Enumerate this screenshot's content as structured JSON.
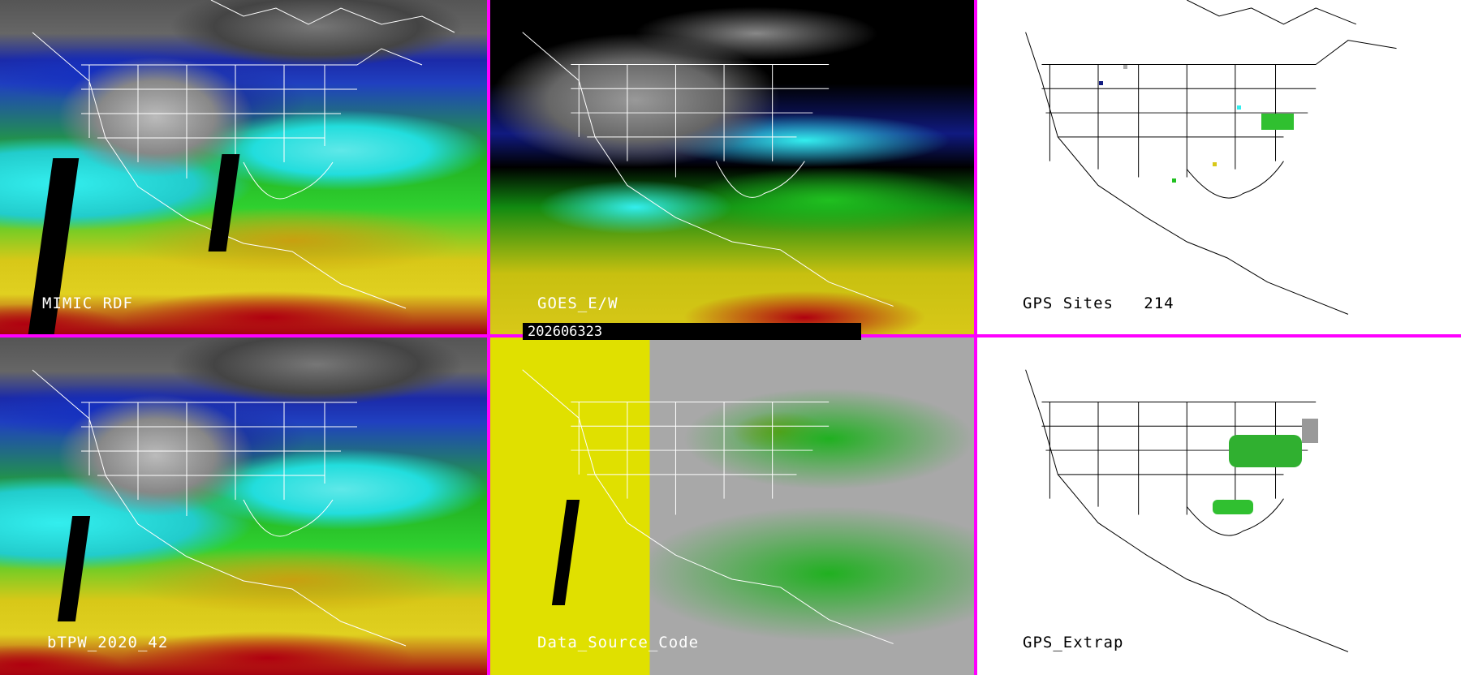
{
  "panels": [
    {
      "label": "MIMIC RDF"
    },
    {
      "label": "GOES_E/W"
    },
    {
      "label": "GPS Sites",
      "count": "214"
    },
    {
      "label": "bTPW_2020_42"
    },
    {
      "label": "Data_Source_Code"
    },
    {
      "label": "GPS_Extrap"
    }
  ],
  "timestamp": "202606323",
  "colors": {
    "separator": "#ff00ff",
    "water_high": "#b00010",
    "water_mid": "#e0d020",
    "water_low": "#1b2aa8"
  }
}
